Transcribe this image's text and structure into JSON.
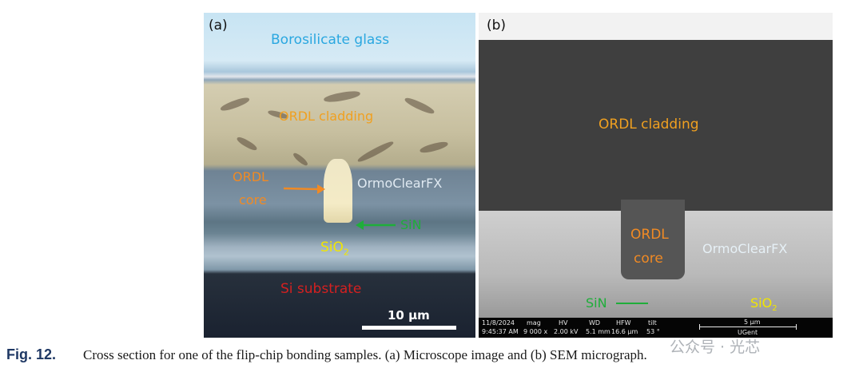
{
  "panel_a": {
    "tag": "(a)",
    "labels": {
      "glass": "Borosilicate glass",
      "cladding": "ORDL cladding",
      "core_line1": "ORDL",
      "core_line2": "core",
      "ormoclear": "OrmoClearFX",
      "sin": "SiN",
      "sio2_base": "SiO",
      "sio2_sub": "2",
      "substrate": "Si substrate"
    },
    "scale_bar": "10 μm"
  },
  "panel_b": {
    "tag": "(b)",
    "labels": {
      "cladding": "ORDL cladding",
      "core_line1": "ORDL",
      "core_line2": "core",
      "ormoclear": "OrmoClearFX",
      "sin": "SiN",
      "sio2_base": "SiO",
      "sio2_sub": "2"
    },
    "info_bar": {
      "date": "11/8/2024",
      "time": "9:45:37 AM",
      "mag_label": "mag",
      "mag_value": "9 000 x",
      "hv_label": "HV",
      "hv_value": "2.00 kV",
      "wd_label": "WD",
      "wd_value": "5.1 mm",
      "hfw_label": "HFW",
      "hfw_value": "16.6 μm",
      "tilt_label": "tilt",
      "tilt_value": "53 °",
      "scale": "5 μm",
      "institution": "UGent"
    }
  },
  "caption": {
    "figure_number": "Fig. 12.",
    "text": "Cross section for one of the flip-chip bonding samples. (a) Microscope image and (b) SEM micrograph."
  },
  "watermark": "公众号 · 光芯",
  "colors": {
    "glass_label": "#2aa7e0",
    "cladding_label": "#f0a020",
    "core_label": "#f08a24",
    "ormoclear_label": "#dfe9f1",
    "sin_label": "#1fae3a",
    "sio2_label": "#f2e600",
    "substrate_label": "#d42020",
    "caption_fig": "#1f3864"
  }
}
